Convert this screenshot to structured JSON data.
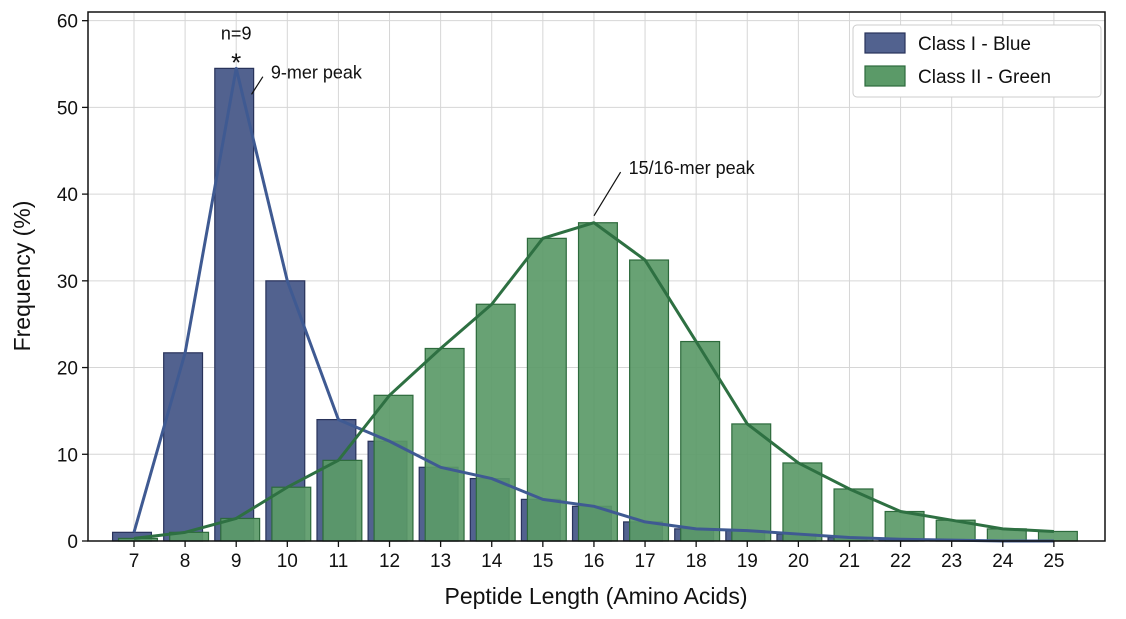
{
  "chart_data": {
    "type": "bar",
    "title": "",
    "xlabel": "Peptide Length (Amino Acids)",
    "ylabel": "Frequency (%)",
    "xlim": [
      6.1,
      26
    ],
    "ylim": [
      0,
      61
    ],
    "yticks": [
      0,
      10,
      20,
      30,
      40,
      50,
      60
    ],
    "categories": [
      7,
      8,
      9,
      10,
      11,
      12,
      13,
      14,
      15,
      16,
      17,
      18,
      19,
      20,
      21,
      22,
      23,
      24,
      25
    ],
    "grid": true,
    "legend_position": "top-right",
    "series": [
      {
        "name": "Class I - Blue",
        "color": "#52628f",
        "edge": "#28325a",
        "line_color": "#3f5a92",
        "values": [
          1.0,
          21.7,
          54.5,
          30.0,
          14.0,
          11.5,
          8.5,
          7.2,
          4.8,
          4.0,
          2.2,
          1.4,
          1.2,
          0.8,
          0.4,
          0.2,
          0.1,
          0.0,
          0.0
        ]
      },
      {
        "name": "Class II - Green",
        "color": "#5b9a68",
        "edge": "#2d6a3c",
        "line_color": "#2e7042",
        "values": [
          0.3,
          1.0,
          2.6,
          6.2,
          9.3,
          16.8,
          22.2,
          27.3,
          34.9,
          36.7,
          32.4,
          23.0,
          13.5,
          9.0,
          6.0,
          3.4,
          2.4,
          1.4,
          1.1
        ]
      }
    ],
    "annotations": [
      {
        "text": "n=9",
        "x": 9,
        "y": 58.5
      },
      {
        "text": "*",
        "x": 9,
        "y": 55.5
      },
      {
        "text": "9-mer peak",
        "x": 9.3,
        "y": 51.5,
        "text_x": 9.6,
        "text_y": 54
      },
      {
        "text": "15/16-mer peak",
        "x": 16,
        "y": 37.5,
        "text_x": 16.6,
        "text_y": 43
      }
    ]
  }
}
